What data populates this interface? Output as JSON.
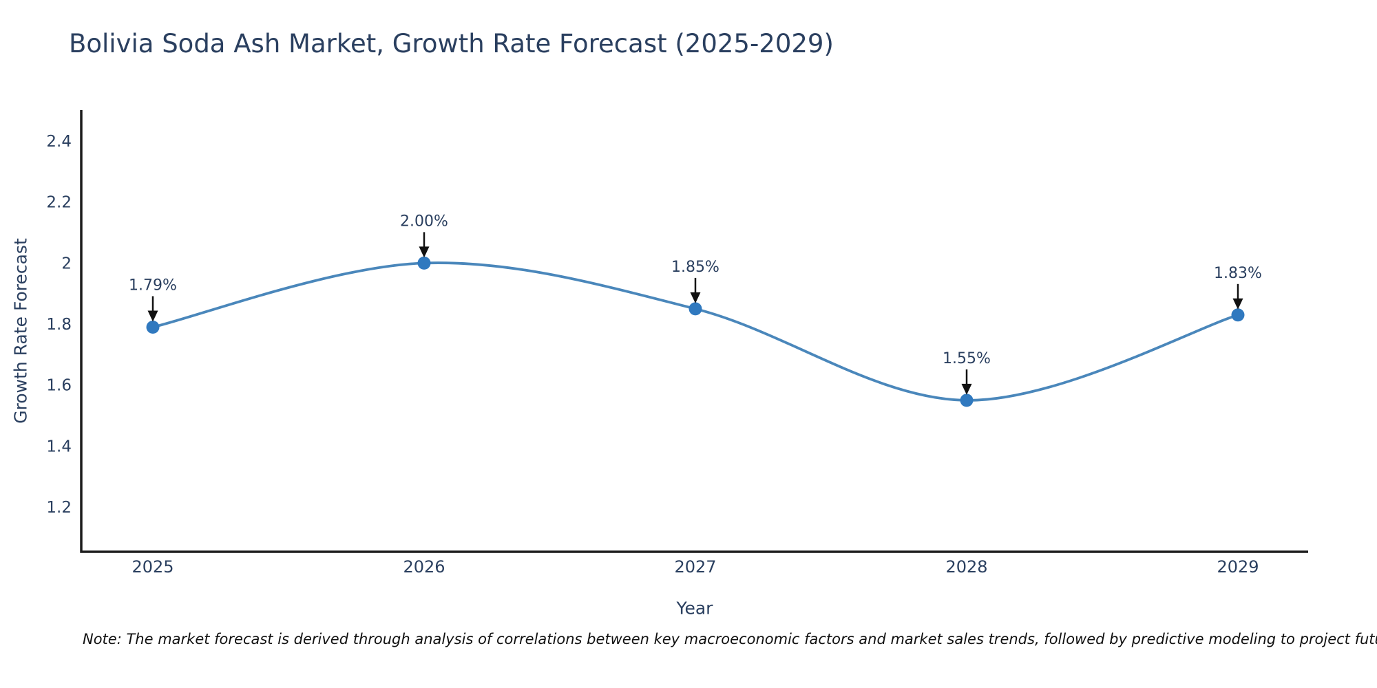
{
  "note": "Note: The market forecast is derived through analysis of correlations between key macroeconomic factors and market sales trends, followed by predictive modeling to project future sales",
  "chart_data": {
    "type": "line",
    "line_shape": "spline",
    "title": "Bolivia Soda Ash Market, Growth Rate Forecast (2025-2029)",
    "xlabel": "Year",
    "ylabel": "Growth Rate Forecast",
    "categories": [
      "2025",
      "2026",
      "2027",
      "2028",
      "2029"
    ],
    "values": [
      1.79,
      2.0,
      1.85,
      1.55,
      1.83
    ],
    "point_labels": [
      "1.79%",
      "2.00%",
      "1.85%",
      "1.55%",
      "1.83%"
    ],
    "annotation_style": "black-arrow-pointing-down-to-marker",
    "yticks": [
      1.2,
      1.4,
      1.6,
      1.8,
      2,
      2.2,
      2.4
    ],
    "ytick_labels": [
      "1.2",
      "1.4",
      "1.6",
      "1.8",
      "2",
      "2.2",
      "2.4"
    ],
    "ylim": [
      1.05,
      2.5
    ],
    "grid": false,
    "legend": "none",
    "colors": {
      "line": "#4a87bb",
      "marker": "#3079bf",
      "axis": "#1c1c1c",
      "text": "#2a3f5f",
      "arrow": "#111111",
      "background": "#ffffff"
    }
  }
}
